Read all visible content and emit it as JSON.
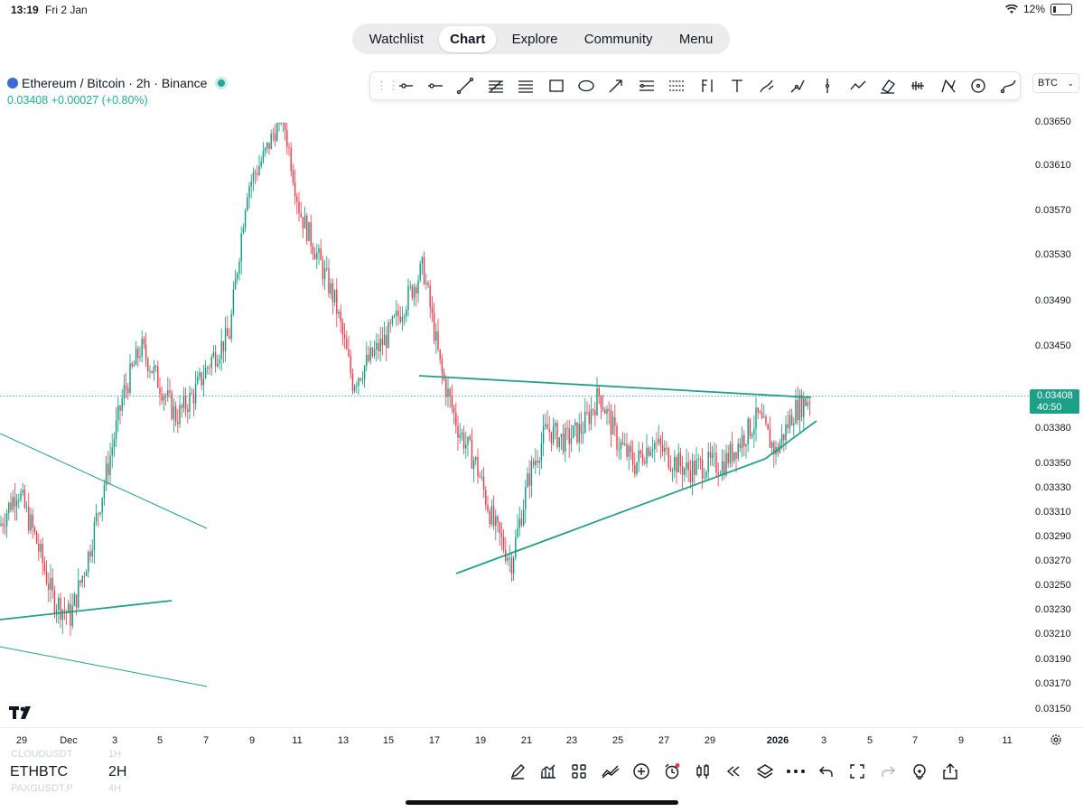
{
  "status": {
    "time": "13:19",
    "date": "Fri 2 Jan",
    "battery": "12%"
  },
  "nav": {
    "items": [
      "Watchlist",
      "Chart",
      "Explore",
      "Community",
      "Menu"
    ],
    "active": "Chart"
  },
  "legend": {
    "title": "Ethereum / Bitcoin · 2h · Binance",
    "last": "0.03408",
    "change": "+0.00027 (+0.80%)"
  },
  "toolbar": {
    "tools": [
      "horizontal-ray",
      "horizontal-line",
      "trend-line",
      "fib-retracement",
      "parallel-channel",
      "rectangle",
      "ellipse",
      "arrow",
      "date-range",
      "price-range",
      "long-position",
      "text",
      "brush",
      "path",
      "vertical-line",
      "polyline",
      "eraser",
      "volume-profile",
      "pitchfork",
      "circle",
      "curve"
    ],
    "currency": "BTC"
  },
  "colors": {
    "up": "#089981",
    "down": "#f23645",
    "accent": "#1e9f88",
    "line": "#22a08a"
  },
  "chart_data": {
    "type": "candlestick",
    "symbol": "ETHBTC",
    "interval": "2H",
    "last_price": "0.03408",
    "countdown": "40:50",
    "y_ticks": [
      "0.03650",
      "0.03610",
      "0.03570",
      "0.03530",
      "0.03490",
      "0.03450",
      "0.03380",
      "0.03350",
      "0.03330",
      "0.03310",
      "0.03290",
      "0.03270",
      "0.03250",
      "0.03230",
      "0.03210",
      "0.03190",
      "0.03170",
      "0.03150"
    ],
    "x_ticks": [
      "29",
      "Dec",
      "3",
      "5",
      "7",
      "9",
      "11",
      "13",
      "15",
      "17",
      "19",
      "21",
      "23",
      "25",
      "27",
      "29",
      "2026",
      "3",
      "5",
      "7",
      "9",
      "11"
    ],
    "close_path": [
      [
        "Nov 28",
        0.033
      ],
      [
        "Nov 29",
        0.0333
      ],
      [
        "Nov 30",
        0.0329
      ],
      [
        "Dec 1",
        0.0324
      ],
      [
        "Dec 1",
        0.03225
      ],
      [
        "Dec 2",
        0.03275
      ],
      [
        "Dec 3",
        0.0334
      ],
      [
        "Dec 3",
        0.0341
      ],
      [
        "Dec 4",
        0.0345
      ],
      [
        "Dec 5",
        0.0342
      ],
      [
        "Dec 6",
        0.0339
      ],
      [
        "Dec 7",
        0.0341
      ],
      [
        "Dec 8",
        0.0344
      ],
      [
        "Dec 9",
        0.0346
      ],
      [
        "Dec 9",
        0.0359
      ],
      [
        "Dec 10",
        0.0362
      ],
      [
        "Dec 10",
        0.0366
      ],
      [
        "Dec 11",
        0.0357
      ],
      [
        "Dec 11",
        0.0353
      ],
      [
        "Dec 12",
        0.0349
      ],
      [
        "Dec 12",
        0.0342
      ],
      [
        "Dec 13",
        0.0344
      ],
      [
        "Dec 14",
        0.0346
      ],
      [
        "Dec 15",
        0.0349
      ],
      [
        "Dec 15",
        0.0352
      ],
      [
        "Dec 16",
        0.0343
      ],
      [
        "Dec 17",
        0.0338
      ],
      [
        "Dec 17",
        0.0335
      ],
      [
        "Dec 18",
        0.033
      ],
      [
        "Dec 18",
        0.0327
      ],
      [
        "Dec 19",
        0.0334
      ],
      [
        "Dec 19",
        0.0338
      ],
      [
        "Dec 20",
        0.0337
      ],
      [
        "Dec 21",
        0.0338
      ],
      [
        "Dec 22",
        0.0341
      ],
      [
        "Dec 23",
        0.0337
      ],
      [
        "Dec 23",
        0.0335
      ],
      [
        "Dec 24",
        0.0337
      ],
      [
        "Dec 25",
        0.03355
      ],
      [
        "Dec 26",
        0.03345
      ],
      [
        "Dec 27",
        0.0335
      ],
      [
        "Dec 28",
        0.0335
      ],
      [
        "Dec 29",
        0.0337
      ],
      [
        "Dec 30",
        0.0339
      ],
      [
        "Dec 31",
        0.0336
      ],
      [
        "Jan 1",
        0.03395
      ],
      [
        "Jan 2",
        0.03408
      ]
    ]
  },
  "bottom": {
    "symbol": "ETHBTC",
    "interval": "2H",
    "ghost_above": [
      "CLOUDUSDT",
      "1H"
    ],
    "ghost_below": [
      "PAXGUSDT.P",
      "4H"
    ]
  }
}
